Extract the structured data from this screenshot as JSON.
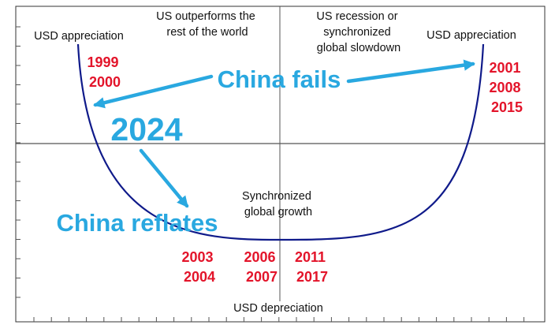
{
  "colors": {
    "curve": "#0f1a8a",
    "axis": "#555555",
    "frame": "#333333",
    "callout": "#29a8e0",
    "years": "#e3142a",
    "text": "#111111"
  },
  "quadrant_labels": {
    "top_left": [
      "US outperforms the",
      "rest of the world"
    ],
    "top_right": [
      "US recession or",
      "synchronized",
      "global slowdown"
    ],
    "bottom": [
      "Synchronized",
      "global growth"
    ]
  },
  "axis_labels": {
    "left_top": "USD appreciation",
    "right_top": "USD appreciation",
    "bottom": "USD depreciation"
  },
  "years": {
    "left_top": [
      "1999",
      "2000"
    ],
    "right_top": [
      "2001",
      "2008",
      "2015"
    ],
    "bottom_col1": [
      "2003",
      "2004"
    ],
    "bottom_col2": [
      "2006",
      "2007"
    ],
    "bottom_col3": [
      "2011",
      "2017"
    ]
  },
  "callouts": {
    "current_year": "2024",
    "scenario_fail": "China fails",
    "scenario_reflate": "China reflates"
  }
}
